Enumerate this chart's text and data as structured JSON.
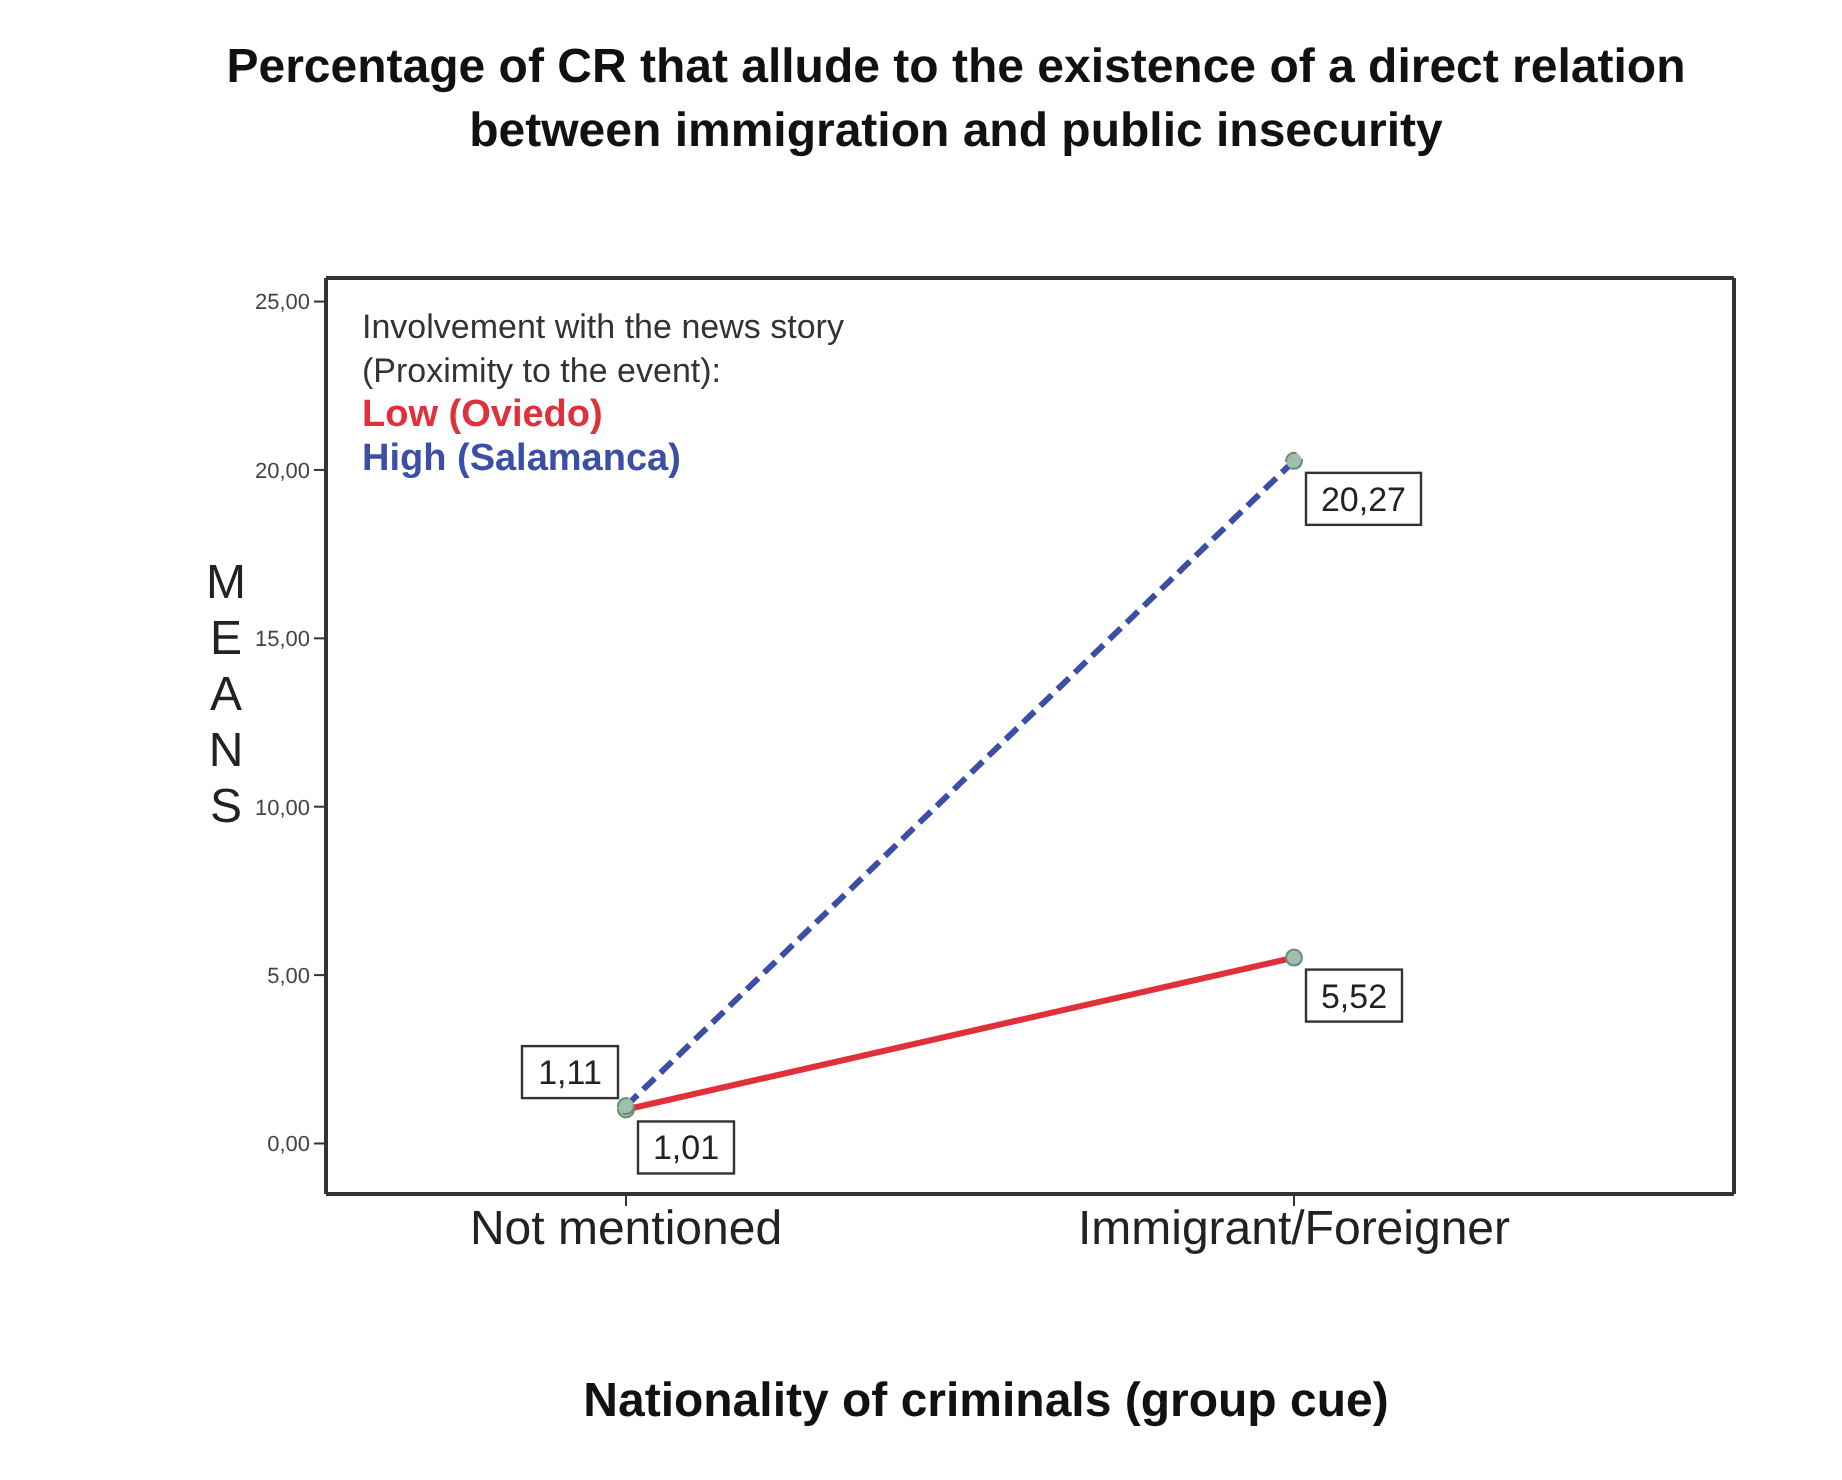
{
  "chart_data": {
    "type": "line",
    "title": "Percentage of CR that allude to the existence of a direct relation between immigration and public insecurity",
    "xlabel": "Nationality of criminals (group cue)",
    "ylabel": "MEANS",
    "legend_title": "Involvement with the news story (Proximity to the event):",
    "categories": [
      "Not mentioned",
      "Immigrant/Foreigner"
    ],
    "series": [
      {
        "name": "Low (Oviedo)",
        "color": "#e0303a",
        "values": [
          1.01,
          5.52
        ],
        "value_labels": [
          "1,01",
          "5,52"
        ],
        "line_style": "solid"
      },
      {
        "name": "High (Salamanca)",
        "color": "#3c4fa6",
        "values": [
          1.11,
          20.27
        ],
        "value_labels": [
          "1,11",
          "20,27"
        ],
        "line_style": "dashed"
      }
    ],
    "ylim": [
      -1.5,
      25.7
    ],
    "yticks": [
      {
        "value": 0,
        "label": "0,00"
      },
      {
        "value": 5,
        "label": "5,00"
      },
      {
        "value": 10,
        "label": "10,00"
      },
      {
        "value": 15,
        "label": "15,00"
      },
      {
        "value": 20,
        "label": "20,00"
      },
      {
        "value": 25,
        "label": "25,00"
      }
    ],
    "marker": "circle",
    "grid": false,
    "legend": "top left"
  }
}
